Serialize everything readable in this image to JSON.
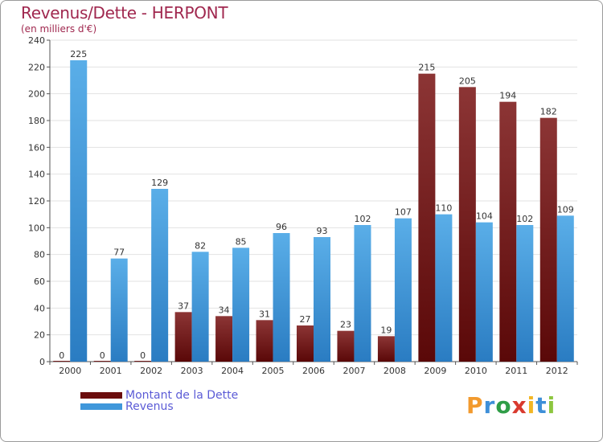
{
  "title": "Revenus/Dette - HERPONT",
  "subtitle": "(en milliers d'€)",
  "colors": {
    "debt": "#6b0d0d",
    "debt_light": "#8c3535",
    "revenue": "#2f86cc",
    "revenue_light": "#5aaee8",
    "title": "#a0284f",
    "legend_text": "#5b5bd6"
  },
  "legend": {
    "items": [
      {
        "label": "Montant de la Dette",
        "color": "#6b0d0d"
      },
      {
        "label": "Revenus",
        "color": "#3f97db"
      }
    ]
  },
  "logo": {
    "letters": [
      "P",
      "r",
      "o",
      "x",
      "i",
      "t",
      "i"
    ],
    "colors": [
      "#f29a2e",
      "#3e8fd8",
      "#2f9d47",
      "#d93a2f",
      "#f2b624",
      "#3e8fd8",
      "#8dc63f"
    ]
  },
  "chart_data": {
    "type": "bar",
    "categories": [
      "2000",
      "2001",
      "2002",
      "2003",
      "2004",
      "2005",
      "2006",
      "2007",
      "2008",
      "2009",
      "2010",
      "2011",
      "2012"
    ],
    "series": [
      {
        "name": "Montant de la Dette",
        "values": [
          0,
          0,
          0,
          37,
          34,
          31,
          27,
          23,
          19,
          215,
          205,
          194,
          182
        ]
      },
      {
        "name": "Revenus",
        "values": [
          225,
          77,
          129,
          82,
          85,
          96,
          93,
          102,
          107,
          110,
          104,
          102,
          109
        ]
      }
    ],
    "ylim": [
      0,
      240
    ],
    "yticks": [
      0,
      20,
      40,
      60,
      80,
      100,
      120,
      140,
      160,
      180,
      200,
      220,
      240
    ],
    "grid": true,
    "legend_position": "bottom-left"
  }
}
